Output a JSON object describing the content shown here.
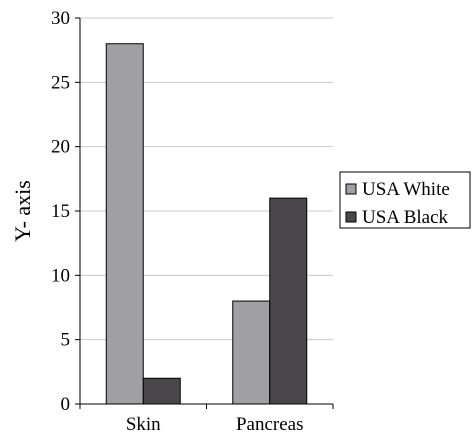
{
  "chart_data": {
    "type": "bar",
    "categories": [
      "Skin",
      "Pancreas"
    ],
    "series": [
      {
        "name": "USA White",
        "values": [
          28,
          8
        ],
        "color": "#a09fa4"
      },
      {
        "name": "USA Black",
        "values": [
          2,
          16
        ],
        "color": "#4a474b"
      }
    ],
    "title": "",
    "xlabel": "",
    "ylabel": "Y- axis",
    "ylim": [
      0,
      30
    ],
    "yticks": [
      0,
      5,
      10,
      15,
      20,
      25,
      30
    ],
    "grid": true,
    "legend": "right"
  }
}
